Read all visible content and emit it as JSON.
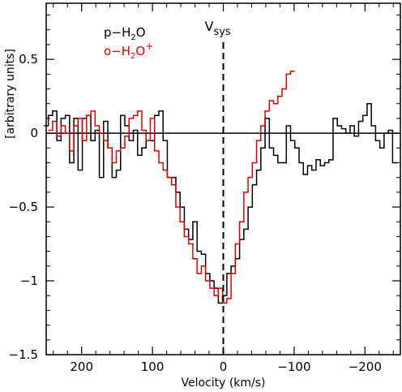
{
  "chart_data": {
    "type": "line",
    "step": true,
    "title": "",
    "xlabel": "Velocity  (km/s)",
    "ylabel": "[arbitrary units]",
    "xlim": [
      250,
      -250
    ],
    "ylim": [
      -1.5,
      0.88
    ],
    "x_reversed": true,
    "x_ticks": [
      200,
      100,
      0,
      -100,
      -200
    ],
    "x_tick_labels": [
      "200",
      "100",
      "0",
      "−100",
      "−200"
    ],
    "y_ticks": [
      0.5,
      0,
      -0.5,
      -1,
      -1.5
    ],
    "y_tick_labels": [
      "0.5",
      "0",
      "−0.5",
      "−1",
      "−1.5"
    ],
    "zero_line": 0,
    "annotation": {
      "label": "V",
      "subscript": "sys",
      "x": 0
    },
    "legend_placement": "top-left",
    "series": [
      {
        "name": "p−H₂O",
        "label_main": "p−H",
        "label_sub": "2",
        "label_tail": "O",
        "label_sup": "",
        "color": "#000000",
        "x": [
          250,
          244,
          238,
          232,
          226,
          220,
          214,
          208,
          202,
          196,
          190,
          184,
          178,
          172,
          166,
          160,
          154,
          148,
          142,
          136,
          130,
          124,
          118,
          112,
          106,
          100,
          94,
          88,
          82,
          76,
          70,
          64,
          58,
          52,
          46,
          40,
          34,
          28,
          22,
          16,
          10,
          4,
          -2,
          -8,
          -14,
          -20,
          -26,
          -32,
          -38,
          -44,
          -50,
          -56,
          -62,
          -68,
          -74,
          -80,
          -86,
          -92,
          -98,
          -104,
          -110,
          -116,
          -122,
          -128,
          -134,
          -140,
          -146,
          -152,
          -158,
          -164,
          -170,
          -176,
          -182,
          -188,
          -194,
          -200,
          -206,
          -212,
          -218,
          -224,
          -230,
          -236,
          -242
        ],
        "y": [
          0.05,
          0.12,
          0.15,
          -0.05,
          0.1,
          0.12,
          -0.2,
          0.1,
          -0.25,
          0.1,
          0.12,
          -0.05,
          0.02,
          -0.3,
          0.08,
          -0.1,
          -0.3,
          -0.25,
          0.12,
          0.05,
          -0.05,
          0.02,
          -0.15,
          -0.1,
          -0.05,
          -0.05,
          0.12,
          0.15,
          -0.05,
          -0.3,
          -0.3,
          -0.4,
          -0.5,
          -0.65,
          -0.72,
          -0.6,
          -0.8,
          -0.82,
          -0.95,
          -1.0,
          -1.05,
          -1.15,
          -1.1,
          -0.95,
          -0.9,
          -0.85,
          -0.72,
          -0.65,
          -0.5,
          -0.35,
          -0.25,
          -0.1,
          0.1,
          -0.1,
          -0.15,
          -0.2,
          -0.2,
          0.05,
          -0.05,
          -0.1,
          -0.2,
          -0.28,
          -0.22,
          -0.25,
          -0.18,
          -0.22,
          -0.2,
          -0.18,
          0.1,
          0.05,
          0.03,
          0.0,
          0.05,
          -0.02,
          0.08,
          0.12,
          0.2,
          0.05,
          -0.05,
          -0.1,
          0.0,
          0.02,
          -0.2
        ]
      },
      {
        "name": "o−H₂O⁺",
        "label_main": "o−H",
        "label_sub": "2",
        "label_tail": "O",
        "label_sup": "+",
        "color": "#e00000",
        "x": [
          244,
          238,
          232,
          226,
          220,
          214,
          208,
          202,
          196,
          190,
          184,
          178,
          172,
          166,
          160,
          154,
          148,
          142,
          136,
          130,
          124,
          118,
          112,
          106,
          100,
          94,
          88,
          82,
          76,
          70,
          64,
          58,
          52,
          46,
          40,
          34,
          28,
          22,
          16,
          10,
          4,
          -2,
          -8,
          -14,
          -20,
          -26,
          -32,
          -38,
          -44,
          -50,
          -56,
          -62,
          -68,
          -74,
          -80,
          -86,
          -92,
          -98
        ],
        "y": [
          0.02,
          0.08,
          -0.02,
          0.05,
          0.0,
          -0.12,
          0.05,
          0.1,
          -0.05,
          0.12,
          0.15,
          0.05,
          0.0,
          -0.05,
          -0.1,
          -0.2,
          -0.12,
          -0.1,
          -0.02,
          0.1,
          0.12,
          0.15,
          0.02,
          -0.05,
          0.1,
          -0.12,
          -0.2,
          -0.25,
          -0.3,
          -0.35,
          -0.5,
          -0.6,
          -0.7,
          -0.75,
          -0.85,
          -0.95,
          -0.9,
          -1.0,
          -1.05,
          -1.1,
          -1.05,
          -1.15,
          -1.12,
          -0.95,
          -0.75,
          -0.6,
          -0.4,
          -0.3,
          -0.2,
          -0.05,
          0.05,
          0.15,
          0.22,
          0.2,
          0.25,
          0.3,
          0.4,
          0.42
        ]
      }
    ]
  }
}
